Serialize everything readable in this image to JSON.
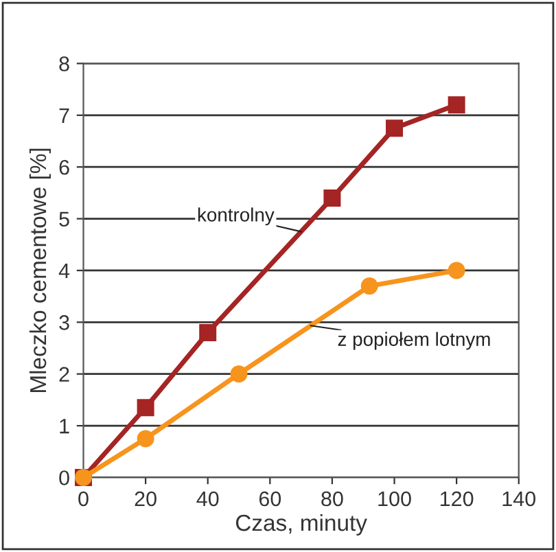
{
  "chart_data": {
    "type": "line",
    "xlabel": "Czas, minuty",
    "ylabel": "Mleczko cementowe [%]",
    "series": [
      {
        "name": "kontrolny",
        "color": "#a52424",
        "marker": "square",
        "x": [
          0,
          20,
          40,
          80,
          100,
          120
        ],
        "values": [
          0,
          1.35,
          2.8,
          5.4,
          6.75,
          7.2
        ]
      },
      {
        "name": "z popiołem lotnym",
        "color": "#f7941d",
        "marker": "circle",
        "x": [
          0,
          20,
          50,
          92,
          120
        ],
        "values": [
          0,
          0.75,
          2.0,
          3.7,
          4.0
        ]
      }
    ],
    "xlim": [
      0,
      140
    ],
    "xticks": [
      0,
      20,
      40,
      60,
      80,
      100,
      120,
      140
    ],
    "ylim": [
      0,
      8
    ],
    "yticks": [
      0,
      1,
      2,
      3,
      4,
      5,
      6,
      7,
      8
    ],
    "grid": "y",
    "legend": false,
    "line_style": "solid"
  }
}
